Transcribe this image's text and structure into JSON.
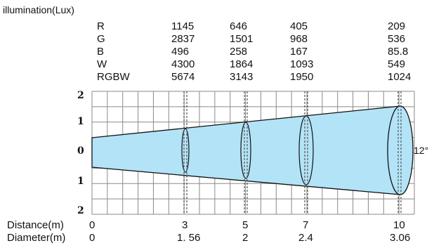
{
  "header": {
    "title": "illumination(Lux)"
  },
  "illumination_table": {
    "rows": [
      {
        "label": "R",
        "values": [
          "1145",
          "646",
          "405",
          "209"
        ]
      },
      {
        "label": "G",
        "values": [
          "2837",
          "1501",
          "968",
          "536"
        ]
      },
      {
        "label": "B",
        "values": [
          "496",
          "258",
          "167",
          "85.8"
        ]
      },
      {
        "label": "W",
        "values": [
          "4300",
          "1864",
          "1093",
          "549"
        ]
      },
      {
        "label": "RGBW",
        "values": [
          "5674",
          "3143",
          "1950",
          "1024"
        ]
      }
    ]
  },
  "beam": {
    "angle_label": "12°",
    "fill_color": "#b3e3f7",
    "outline_color": "#111111",
    "y_tick_labels": [
      "2",
      "1",
      "0",
      "1",
      "2"
    ]
  },
  "distance_row": {
    "label": "Distance(m)",
    "values": [
      "0",
      "3",
      "5",
      "7",
      "10"
    ]
  },
  "diameter_row": {
    "label": "Diameter(m)",
    "values": [
      "0",
      "1. 56",
      "2",
      "2.4",
      "3.06"
    ]
  }
}
